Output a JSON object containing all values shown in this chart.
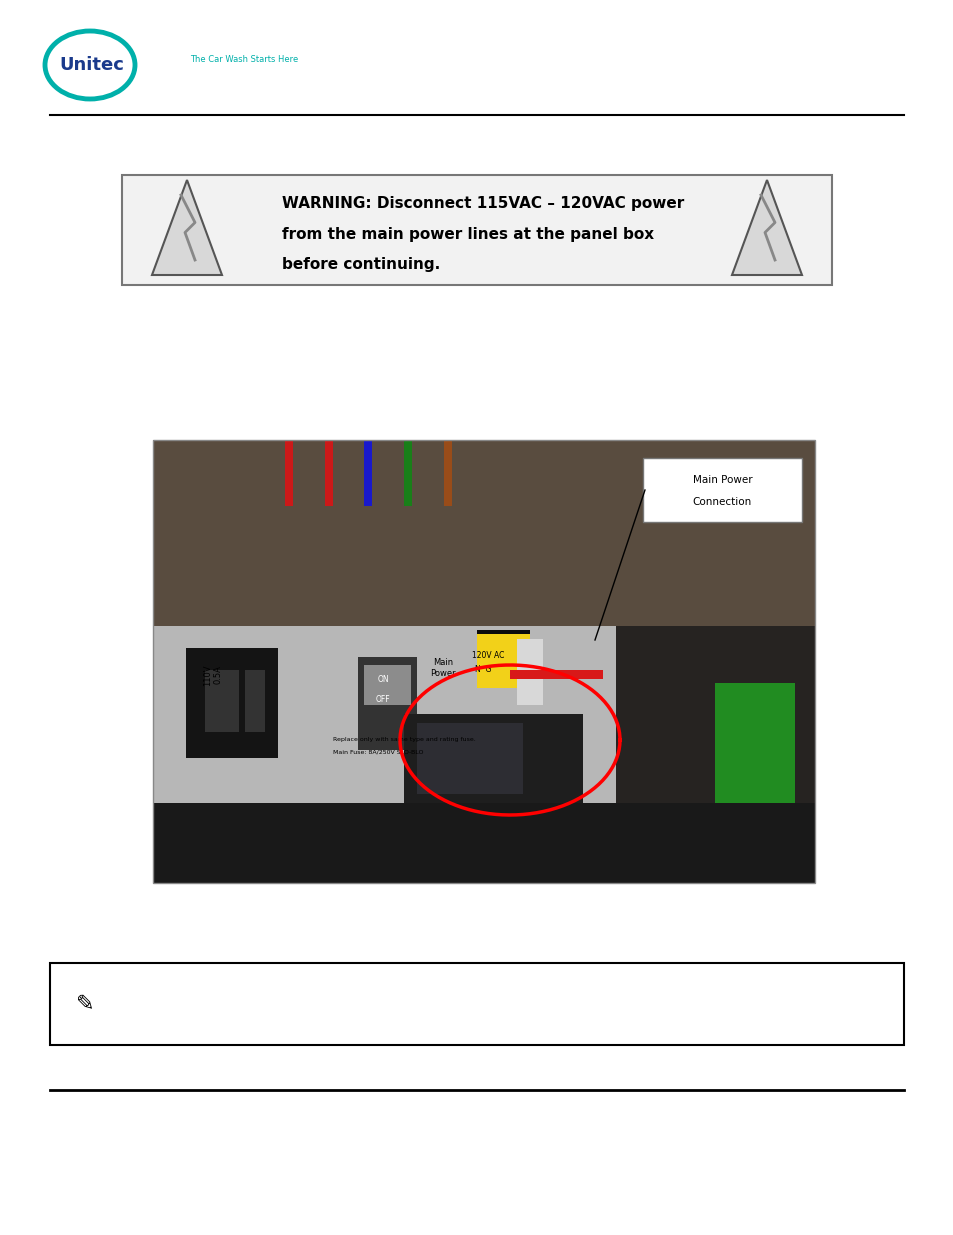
{
  "bg_color": "#ffffff",
  "logo_circle_color": "#00b0aa",
  "logo_text_color": "#1a3a8c",
  "logo_tagline_color": "#00b0aa",
  "logo_text": "Unitec",
  "logo_tagline": "The Car Wash Starts Here",
  "warning_text_line1": "WARNING: Disconnect 115VAC – 120VAC power",
  "warning_text_line2": "from the main power lines at the panel box",
  "warning_text_line3": "before continuing.",
  "warning_text_color": "#000000",
  "warning_box_border_color": "#777777",
  "note_box_border_color": "#000000",
  "header_line_color": "#000000",
  "footer_line_color": "#000000"
}
